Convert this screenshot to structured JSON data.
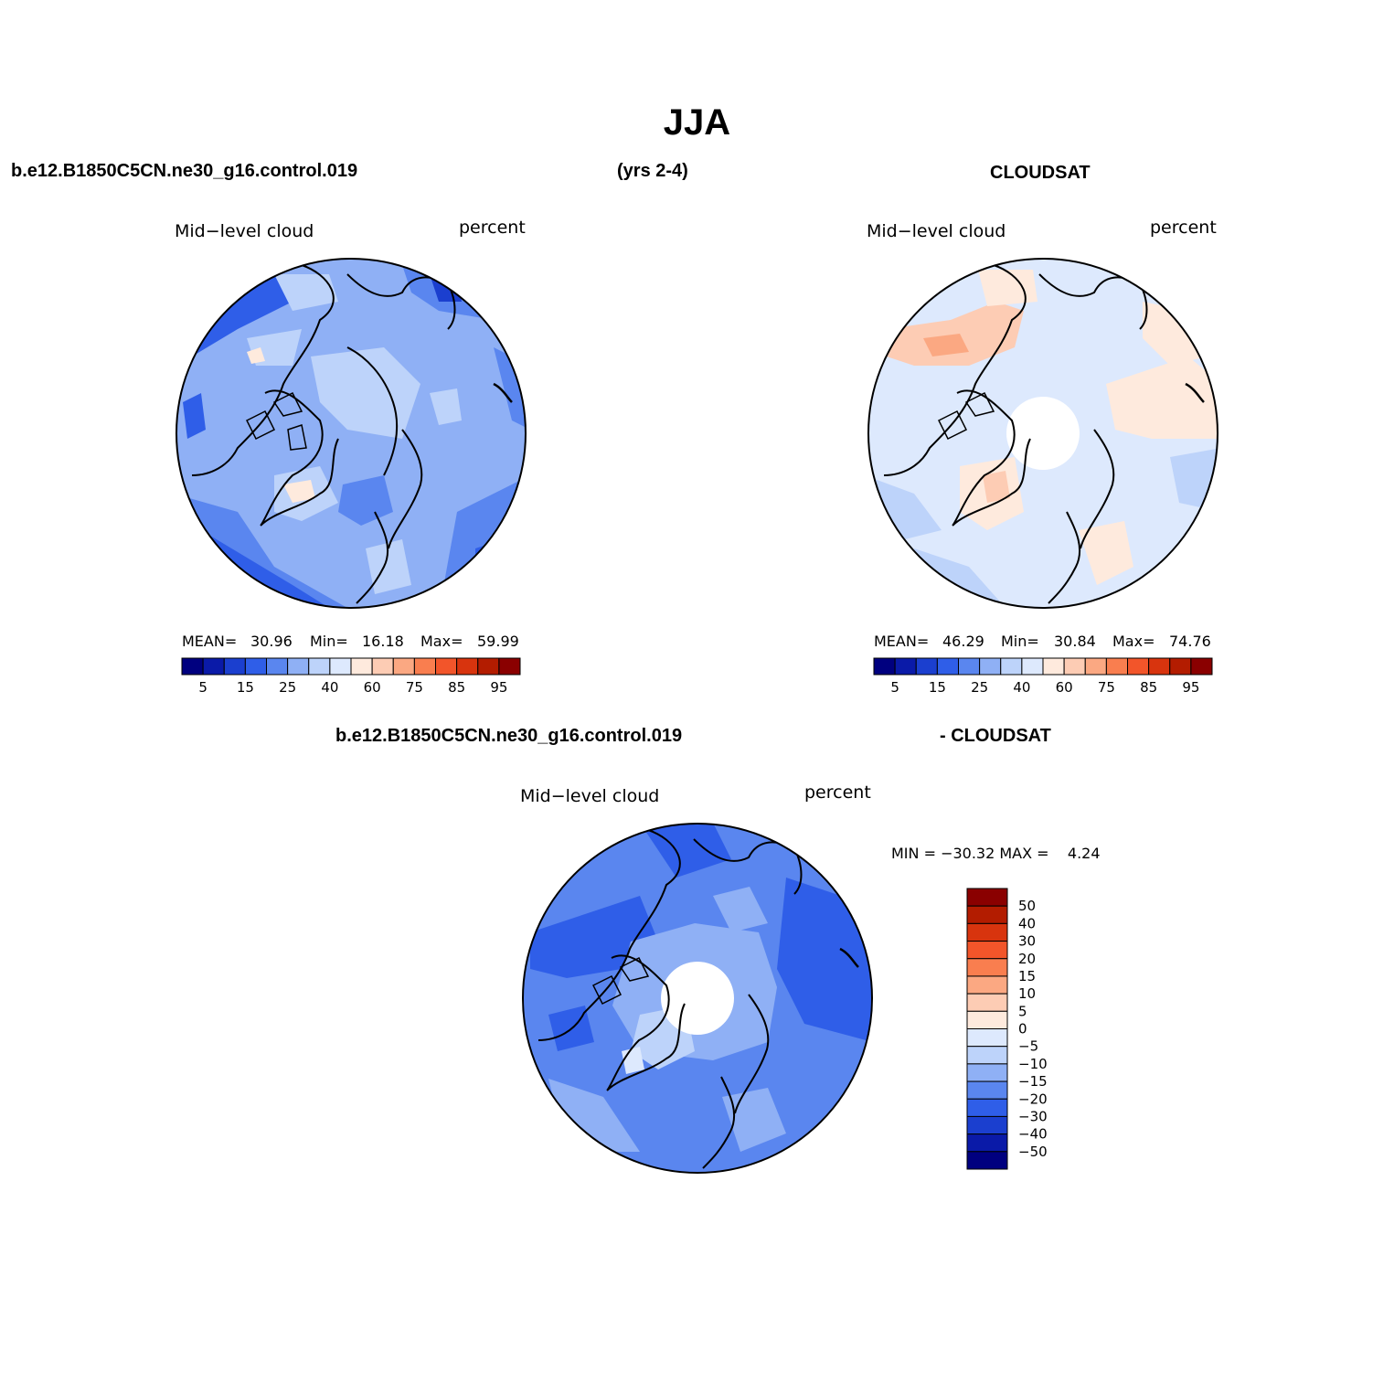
{
  "title": "JJA",
  "header": {
    "case_name": "b.e12.B1850C5CN.ne30_g16.control.019",
    "years": "(yrs 2-4)",
    "obs_name": "CLOUDSAT"
  },
  "diff_header": {
    "case_name": "b.e12.B1850C5CN.ne30_g16.control.019",
    "obs_name": "- CLOUDSAT"
  },
  "panels": {
    "model": {
      "left_label": "Mid−level cloud",
      "right_label": "percent",
      "stats": {
        "mean_label": "MEAN=",
        "mean": "30.96",
        "min_label": "Min=",
        "min": "16.18",
        "max_label": "Max=",
        "max": "59.99"
      }
    },
    "obs": {
      "left_label": "Mid−level cloud",
      "right_label": "percent",
      "stats": {
        "mean_label": "MEAN=",
        "mean": "46.29",
        "min_label": "Min=",
        "min": "30.84",
        "max_label": "Max=",
        "max": "74.76"
      }
    },
    "diff": {
      "left_label": "Mid−level cloud",
      "right_label": "percent",
      "minmax": "MIN = −30.32 MAX =    4.24"
    }
  },
  "colorbar_abs": {
    "labels": [
      "5",
      "15",
      "25",
      "40",
      "60",
      "75",
      "85",
      "95"
    ],
    "colors": [
      "#00007f",
      "#0a1aa8",
      "#1b3fcf",
      "#2f5ee8",
      "#5a86ef",
      "#8fb0f5",
      "#bdd3fa",
      "#dde9fd",
      "#feeadd",
      "#fdccb4",
      "#fba882",
      "#f97e4f",
      "#f2552a",
      "#d8340e",
      "#b31c00",
      "#8a0000"
    ]
  },
  "colorbar_diff": {
    "labels": [
      "50",
      "40",
      "30",
      "20",
      "15",
      "10",
      "5",
      "0",
      "−5",
      "−10",
      "−15",
      "−20",
      "−30",
      "−40",
      "−50"
    ],
    "colors": [
      "#8a0000",
      "#b31c00",
      "#d8340e",
      "#f2552a",
      "#f97e4f",
      "#fba882",
      "#fdccb4",
      "#feeadd",
      "#dde9fd",
      "#bdd3fa",
      "#8fb0f5",
      "#5a86ef",
      "#2f5ee8",
      "#1b3fcf",
      "#0a1aa8",
      "#00007f"
    ]
  },
  "map_field_colors": {
    "model_base": "#8fb0f5",
    "obs_base": "#dde9fd",
    "diff_base": "#5a86ef"
  }
}
